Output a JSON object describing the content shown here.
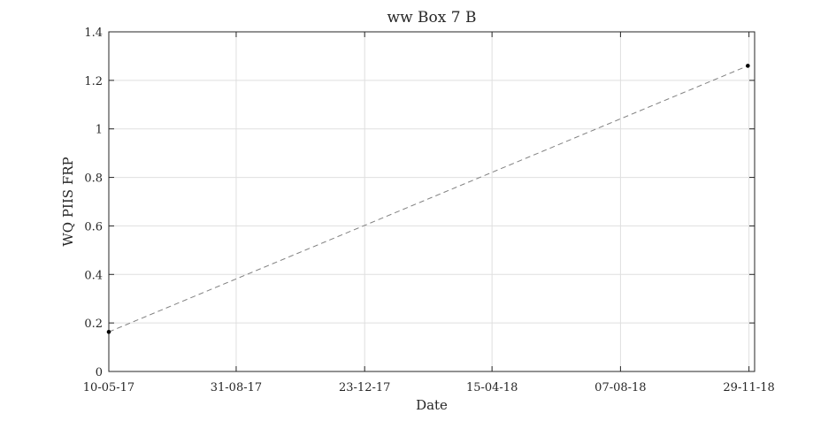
{
  "chart_data": {
    "type": "line",
    "title": "ww Box 7 B",
    "xlabel": "Date",
    "ylabel": "WQ PIIS FRP",
    "x_tick_labels": [
      "10-05-17",
      "31-08-17",
      "23-12-17",
      "15-04-18",
      "07-08-18",
      "29-11-18"
    ],
    "x_ticks": [
      "2017-05-10",
      "2017-08-31",
      "2017-12-23",
      "2018-04-15",
      "2018-08-07",
      "2018-11-29"
    ],
    "xlim": [
      "2017-05-10",
      "2018-12-04"
    ],
    "ylim": [
      0,
      1.4
    ],
    "y_ticks": [
      0,
      0.2,
      0.4,
      0.6,
      0.8,
      1,
      1.2,
      1.4
    ],
    "y_tick_labels": [
      "0",
      "0.2",
      "0.4",
      "0.6",
      "0.8",
      "1",
      "1.2",
      "1.4"
    ],
    "grid": true,
    "series": [
      {
        "x": [
          "2017-05-10",
          "2018-11-28"
        ],
        "y": [
          0.163,
          1.26
        ],
        "color": "#000000",
        "line_color": "#808080",
        "line_style": "dashed"
      }
    ]
  }
}
